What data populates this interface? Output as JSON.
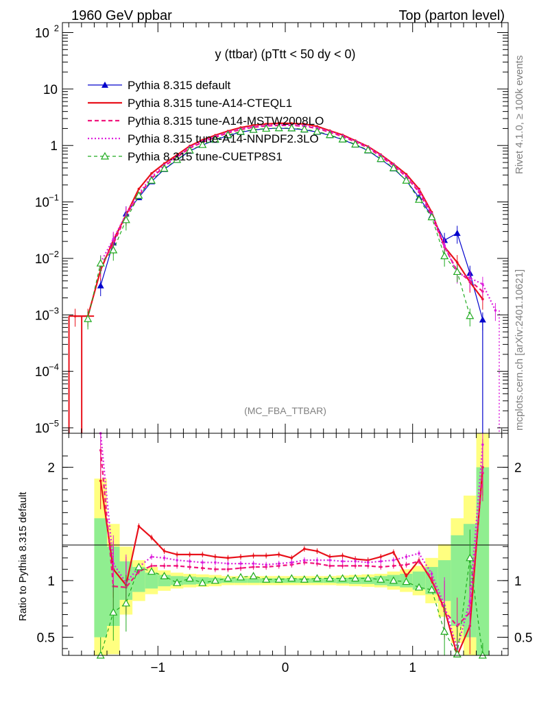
{
  "header": {
    "left_title": "1960 GeV ppbar",
    "right_title": "Top (parton level)"
  },
  "side_labels": {
    "rivet": "Rivet 4.1.0, ≥ 100k events",
    "mcplots": "mcplots.cern.ch [arXiv:2401.10621]"
  },
  "colors": {
    "default": "#0000cc",
    "cteql1": "#e8101a",
    "mstw": "#f0147c",
    "nnpdf": "#dc1edc",
    "cuetp8s1": "#1eaa1e",
    "band_inner": "#90ee90",
    "band_outer": "#ffff80"
  },
  "chart_data": [
    {
      "id": "main",
      "type": "line",
      "title": "y (ttbar) (pTtt < 50 dy < 0)",
      "analysis_label": "(MC_FBA_TTBAR)",
      "xlim": [
        -1.75,
        1.75
      ],
      "yscale": "log",
      "ylim": [
        8e-06,
        150
      ],
      "yticks": [
        {
          "value": 100,
          "base": "10",
          "exp": "2"
        },
        {
          "value": 10,
          "base": "10",
          "exp": ""
        },
        {
          "value": 1,
          "base": "1",
          "exp": ""
        },
        {
          "value": 0.1,
          "base": "10",
          "exp": "−1"
        },
        {
          "value": 0.01,
          "base": "10",
          "exp": "−2"
        },
        {
          "value": 0.001,
          "base": "10",
          "exp": "−3"
        },
        {
          "value": 0.0001,
          "base": "10",
          "exp": "−4"
        },
        {
          "value": 1e-05,
          "base": "10",
          "exp": "−5"
        }
      ],
      "x": [
        -1.65,
        -1.55,
        -1.45,
        -1.35,
        -1.25,
        -1.15,
        -1.05,
        -0.95,
        -0.85,
        -0.75,
        -0.65,
        -0.55,
        -0.45,
        -0.35,
        -0.25,
        -0.15,
        -0.05,
        0.05,
        0.15,
        0.25,
        0.35,
        0.45,
        0.55,
        0.65,
        0.75,
        0.85,
        0.95,
        1.05,
        1.15,
        1.25,
        1.35,
        1.45,
        1.55,
        1.65
      ],
      "series": [
        {
          "name": "Pythia 8.315 default",
          "style": "default",
          "values": [
            null,
            null,
            0.0033,
            0.019,
            0.062,
            0.12,
            0.23,
            0.38,
            0.55,
            0.8,
            1.02,
            1.25,
            1.5,
            1.72,
            1.88,
            1.98,
            2.02,
            1.99,
            1.9,
            1.73,
            1.51,
            1.27,
            1.03,
            0.81,
            0.57,
            0.39,
            0.24,
            0.12,
            0.057,
            0.021,
            0.028,
            0.0055,
            0.00082,
            null
          ]
        },
        {
          "name": "Pythia 8.315 tune-A14-CTEQL1",
          "style": "cteql1",
          "values": [
            0.00095,
            0.00095,
            0.0062,
            0.021,
            0.059,
            0.17,
            0.32,
            0.48,
            0.68,
            0.98,
            1.25,
            1.52,
            1.8,
            2.08,
            2.28,
            2.4,
            2.48,
            2.46,
            2.4,
            2.18,
            1.83,
            1.54,
            1.22,
            0.96,
            0.69,
            0.47,
            0.31,
            0.17,
            0.066,
            0.016,
            0.0085,
            0.0038,
            0.0019,
            null
          ]
        },
        {
          "name": "Pythia 8.315 tune-A14-MSTW2008LO",
          "style": "mstw",
          "values": [
            null,
            null,
            0.0072,
            0.018,
            0.058,
            0.13,
            0.26,
            0.43,
            0.62,
            0.9,
            1.14,
            1.4,
            1.67,
            1.92,
            2.1,
            2.22,
            2.27,
            2.27,
            2.2,
            2.0,
            1.72,
            1.44,
            1.16,
            0.91,
            0.64,
            0.44,
            0.28,
            0.15,
            0.058,
            0.016,
            0.006,
            0.004,
            0.0026,
            null
          ]
        },
        {
          "name": "Pythia 8.315 tune-A14-NNPDF2.3LO",
          "style": "nnpdf",
          "values": [
            null,
            null,
            0.0085,
            0.022,
            0.061,
            0.14,
            0.28,
            0.45,
            0.64,
            0.94,
            1.18,
            1.45,
            1.73,
            1.98,
            2.15,
            2.26,
            2.32,
            2.3,
            2.24,
            2.05,
            1.78,
            1.49,
            1.2,
            0.94,
            0.67,
            0.46,
            0.29,
            0.16,
            0.062,
            0.017,
            0.0055,
            0.0045,
            0.0035,
            0.0012
          ]
        },
        {
          "name": "Pythia 8.315 tune-CUETP8S1",
          "style": "cuetp8s1",
          "values": [
            null,
            0.00085,
            0.0082,
            0.014,
            0.048,
            0.13,
            0.24,
            0.39,
            0.56,
            0.82,
            1.03,
            1.28,
            1.54,
            1.76,
            1.91,
            2.0,
            2.04,
            2.03,
            1.94,
            1.77,
            1.54,
            1.29,
            1.05,
            0.83,
            0.58,
            0.4,
            0.24,
            0.11,
            0.054,
            0.011,
            0.0058,
            0.00096,
            null,
            null
          ]
        }
      ]
    },
    {
      "id": "ratio",
      "type": "line",
      "ylabel": "Ratio to Pythia 8.315 default",
      "xlim": [
        -1.75,
        1.75
      ],
      "ylim": [
        0.34,
        2.3
      ],
      "yticks": [
        {
          "value": 2,
          "label": "2"
        },
        {
          "value": 1,
          "label": "1"
        },
        {
          "value": 0.5,
          "label": "0.5"
        }
      ],
      "xticks": [
        {
          "value": -1,
          "label": "−1"
        },
        {
          "value": 0,
          "label": "0"
        },
        {
          "value": 1,
          "label": "1"
        }
      ],
      "x": [
        -1.45,
        -1.35,
        -1.25,
        -1.15,
        -1.05,
        -0.95,
        -0.85,
        -0.75,
        -0.65,
        -0.55,
        -0.45,
        -0.35,
        -0.25,
        -0.15,
        -0.05,
        0.05,
        0.15,
        0.25,
        0.35,
        0.45,
        0.55,
        0.65,
        0.75,
        0.85,
        0.95,
        1.05,
        1.15,
        1.25,
        1.35,
        1.45,
        1.55
      ],
      "band_inner": [
        0.5,
        0.6,
        0.83,
        0.9,
        0.93,
        0.95,
        0.96,
        0.965,
        0.97,
        0.975,
        0.98,
        0.98,
        0.98,
        0.98,
        0.98,
        0.98,
        0.98,
        0.98,
        0.98,
        0.975,
        0.97,
        0.97,
        0.96,
        0.95,
        0.94,
        0.92,
        0.88,
        0.82,
        0.6,
        0.5,
        0.34
      ],
      "band_outer": [
        0.34,
        0.35,
        0.7,
        0.82,
        0.88,
        0.91,
        0.93,
        0.94,
        0.945,
        0.95,
        0.96,
        0.96,
        0.96,
        0.96,
        0.96,
        0.96,
        0.96,
        0.96,
        0.96,
        0.955,
        0.95,
        0.945,
        0.94,
        0.92,
        0.9,
        0.87,
        0.8,
        0.68,
        0.45,
        0.34,
        0.34
      ],
      "band_inner_hi": [
        1.55,
        1.3,
        1.17,
        1.12,
        1.07,
        1.05,
        1.04,
        1.035,
        1.03,
        1.025,
        1.02,
        1.02,
        1.02,
        1.02,
        1.02,
        1.02,
        1.02,
        1.02,
        1.02,
        1.025,
        1.03,
        1.03,
        1.04,
        1.05,
        1.06,
        1.08,
        1.12,
        1.18,
        1.4,
        1.5,
        2.0
      ],
      "band_outer_hi": [
        1.9,
        1.5,
        1.3,
        1.18,
        1.12,
        1.09,
        1.07,
        1.06,
        1.055,
        1.05,
        1.04,
        1.04,
        1.04,
        1.04,
        1.04,
        1.04,
        1.04,
        1.04,
        1.04,
        1.045,
        1.05,
        1.055,
        1.06,
        1.08,
        1.1,
        1.13,
        1.2,
        1.32,
        1.55,
        1.75,
        2.3
      ],
      "series": [
        {
          "name": "Pythia 8.315 tune-A14-CTEQL1",
          "style": "cteql1",
          "values": [
            1.88,
            1.1,
            0.96,
            1.48,
            1.38,
            1.26,
            1.23,
            1.23,
            1.23,
            1.21,
            1.2,
            1.21,
            1.22,
            1.22,
            1.23,
            1.2,
            1.28,
            1.26,
            1.21,
            1.22,
            1.19,
            1.18,
            1.21,
            1.25,
            1.04,
            1.18,
            1.0,
            0.75,
            0.33,
            0.6,
            2.0
          ]
        },
        {
          "name": "Pythia 8.315 tune-A14-MSTW2008LO",
          "style": "mstw",
          "values": [
            2.15,
            0.95,
            0.94,
            1.08,
            1.13,
            1.13,
            1.13,
            1.12,
            1.11,
            1.1,
            1.1,
            1.11,
            1.12,
            1.12,
            1.13,
            1.14,
            1.16,
            1.15,
            1.13,
            1.13,
            1.13,
            1.13,
            1.12,
            1.13,
            1.14,
            1.17,
            1.02,
            0.73,
            0.6,
            0.72,
            1.95
          ]
        },
        {
          "name": "Pythia 8.315 tune-A14-NNPDF2.3LO",
          "style": "nnpdf",
          "values": [
            2.45,
            1.15,
            0.98,
            1.12,
            1.21,
            1.2,
            1.18,
            1.17,
            1.16,
            1.16,
            1.15,
            1.15,
            1.15,
            1.14,
            1.15,
            1.16,
            1.18,
            1.18,
            1.18,
            1.17,
            1.17,
            1.16,
            1.17,
            1.18,
            1.21,
            1.24,
            1.06,
            0.78,
            0.4,
            0.82,
            2.2
          ]
        },
        {
          "name": "Pythia 8.315 tune-CUETP8S1",
          "style": "cuetp8s1",
          "values": [
            0.25,
            0.72,
            0.8,
            1.12,
            1.08,
            1.04,
            0.98,
            1.02,
            0.98,
            1.0,
            1.02,
            1.03,
            1.04,
            1.01,
            1.01,
            1.02,
            1.01,
            1.02,
            1.02,
            1.02,
            1.02,
            1.02,
            1.01,
            1.0,
            0.99,
            0.94,
            0.92,
            0.55,
            0.35,
            1.2,
            0.2
          ]
        }
      ]
    }
  ]
}
